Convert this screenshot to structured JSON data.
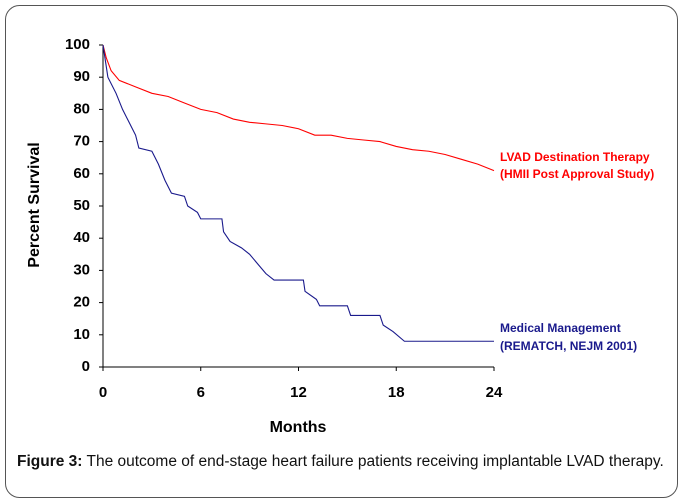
{
  "chart_data": {
    "type": "line",
    "x_label": "Months",
    "y_label": "Percent Survival",
    "xlim": [
      0,
      24
    ],
    "xticks": [
      0,
      6,
      12,
      18,
      24
    ],
    "ylim": [
      0,
      100
    ],
    "yticks": [
      0,
      10,
      20,
      30,
      40,
      50,
      60,
      70,
      80,
      90,
      100
    ],
    "series": [
      {
        "name": "LVAD Destination Therapy",
        "subname": "(HMII Post Approval Study)",
        "color": "#ff0000",
        "x": [
          0,
          0.2,
          0.5,
          1,
          2,
          3,
          4,
          5,
          6,
          7,
          8,
          9,
          10,
          11,
          12,
          13,
          14,
          15,
          16,
          17,
          18,
          19,
          20,
          21,
          22,
          23,
          24
        ],
        "values": [
          100,
          96,
          92,
          89,
          87,
          85,
          84,
          82,
          80,
          79,
          77,
          76,
          75.5,
          75,
          74,
          72,
          72,
          71,
          70.5,
          70,
          68.5,
          67.5,
          67,
          66,
          64.5,
          63,
          61
        ]
      },
      {
        "name": "Medical Management",
        "subname": "(REMATCH, NEJM 2001)",
        "color": "#1a1a8c",
        "x": [
          0,
          0.3,
          0.8,
          1.2,
          1.6,
          2,
          2.2,
          3,
          3.4,
          3.8,
          4.2,
          5,
          5.2,
          5.8,
          6,
          7.3,
          7.4,
          7.8,
          8.5,
          9,
          9.5,
          10,
          10.5,
          12.3,
          12.4,
          13.1,
          13.3,
          15,
          15.2,
          17,
          17.2,
          17.8,
          18.5,
          24
        ],
        "values": [
          100,
          90,
          85,
          80,
          76,
          72,
          68,
          67,
          63,
          58,
          54,
          53,
          50,
          48,
          46,
          46,
          42,
          39,
          37,
          35,
          32,
          29,
          27,
          27,
          23.5,
          21,
          19,
          19,
          16,
          16,
          13,
          11,
          8,
          8
        ]
      }
    ]
  },
  "caption": {
    "label": "Figure 3:",
    "text": "The outcome of end-stage heart failure patients receiving implantable LVAD therapy."
  }
}
